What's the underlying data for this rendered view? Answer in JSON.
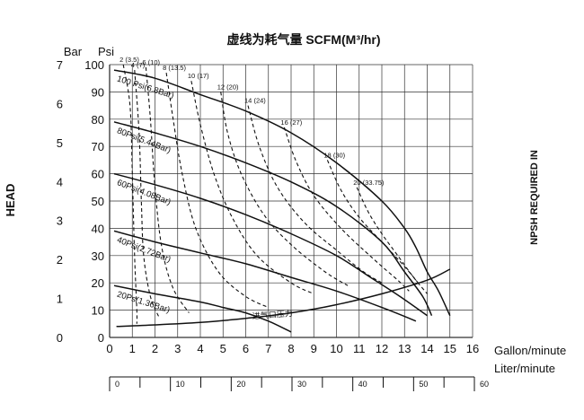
{
  "chart_data": {
    "type": "line",
    "title": "虚线为耗气量 SCFM(M³/hr)",
    "xlabel": "Gallon/minute",
    "x2label": "Liter/minute",
    "ylabel_left": "HEAD",
    "ylabel_bar_unit": "Bar",
    "ylabel_psi_unit": "Psi",
    "ylabel_right": "NPSH REQUIRED IN",
    "xlim": [
      0,
      16
    ],
    "ylim_psi": [
      0,
      100
    ],
    "ylim_bar": [
      0,
      7
    ],
    "x_ticks": [
      "0",
      "1",
      "2",
      "3",
      "4",
      "5",
      "6",
      "7",
      "8",
      "9",
      "10",
      "11",
      "12",
      "13",
      "14",
      "15",
      "16"
    ],
    "psi_ticks": [
      "0",
      "10",
      "20",
      "30",
      "40",
      "50",
      "60",
      "70",
      "80",
      "90",
      "100"
    ],
    "bar_ticks": [
      "0",
      "1",
      "2",
      "3",
      "4",
      "5",
      "6",
      "7"
    ],
    "liter_ticks": [
      "0",
      "10",
      "20",
      "30",
      "40",
      "50",
      "60"
    ],
    "grid": true,
    "pressure_curves": [
      {
        "name": "100 Psi(6.8Bar)",
        "points": [
          [
            0.2,
            98
          ],
          [
            2,
            95
          ],
          [
            4,
            89
          ],
          [
            6,
            83
          ],
          [
            8,
            75
          ],
          [
            10,
            64
          ],
          [
            12,
            50
          ],
          [
            13,
            40
          ],
          [
            13.5,
            33
          ],
          [
            14,
            24
          ],
          [
            14.5,
            17
          ],
          [
            15,
            8
          ]
        ]
      },
      {
        "name": "80Psi(5.44Bar)",
        "points": [
          [
            0.2,
            79
          ],
          [
            2,
            75
          ],
          [
            4,
            70
          ],
          [
            6,
            64
          ],
          [
            8,
            57
          ],
          [
            10,
            48
          ],
          [
            12,
            35
          ],
          [
            13,
            24
          ],
          [
            13.8,
            15
          ],
          [
            14.2,
            8
          ]
        ]
      },
      {
        "name": "60Psi(4.08Bar)",
        "points": [
          [
            0.2,
            60
          ],
          [
            2,
            56
          ],
          [
            4,
            51
          ],
          [
            6,
            45
          ],
          [
            8,
            38
          ],
          [
            10,
            30
          ],
          [
            11.5,
            22
          ],
          [
            12.8,
            15
          ],
          [
            14,
            8
          ]
        ]
      },
      {
        "name": "40Psi(2.72Bar)",
        "points": [
          [
            0.2,
            39
          ],
          [
            2,
            35
          ],
          [
            4,
            31
          ],
          [
            6,
            27
          ],
          [
            8,
            22
          ],
          [
            10,
            17
          ],
          [
            12,
            11
          ],
          [
            13.5,
            6
          ]
        ]
      },
      {
        "name": "20Ps(1.36Bar)",
        "points": [
          [
            0.2,
            19
          ],
          [
            2,
            16
          ],
          [
            4,
            13
          ],
          [
            5,
            11
          ],
          [
            6,
            9
          ],
          [
            7,
            6
          ],
          [
            8,
            2
          ]
        ]
      }
    ],
    "air_consumption_curves": [
      {
        "name": "2 (3.5)",
        "points": [
          [
            0.6,
            100
          ],
          [
            0.9,
            85
          ],
          [
            1.0,
            60
          ],
          [
            1.1,
            30
          ],
          [
            1.2,
            10
          ],
          [
            1.2,
            5
          ]
        ]
      },
      {
        "name": "4 (7)",
        "points": [
          [
            1.1,
            98
          ],
          [
            1.3,
            75
          ],
          [
            1.4,
            50
          ],
          [
            1.5,
            30
          ],
          [
            1.8,
            15
          ],
          [
            2.2,
            7
          ]
        ]
      },
      {
        "name": "6 (10)",
        "points": [
          [
            1.6,
            99
          ],
          [
            1.8,
            80
          ],
          [
            2.0,
            55
          ],
          [
            2.3,
            33
          ],
          [
            2.8,
            18
          ],
          [
            3.5,
            9
          ]
        ]
      },
      {
        "name": "8 (13.5)",
        "points": [
          [
            2.5,
            97
          ],
          [
            2.8,
            80
          ],
          [
            3.2,
            60
          ],
          [
            3.8,
            40
          ],
          [
            4.8,
            24
          ],
          [
            6,
            15
          ],
          [
            7,
            11
          ]
        ]
      },
      {
        "name": "10 (17)",
        "points": [
          [
            3.6,
            94
          ],
          [
            4,
            78
          ],
          [
            4.6,
            60
          ],
          [
            5.4,
            44
          ],
          [
            6.5,
            30
          ],
          [
            8,
            20
          ],
          [
            9,
            16
          ]
        ]
      },
      {
        "name": "12 (20)",
        "points": [
          [
            4.9,
            90
          ],
          [
            5.2,
            75
          ],
          [
            5.8,
            60
          ],
          [
            6.8,
            45
          ],
          [
            8,
            34
          ],
          [
            9.5,
            24
          ],
          [
            10.5,
            19
          ]
        ]
      },
      {
        "name": "14 (24)",
        "points": [
          [
            6.1,
            85
          ],
          [
            6.6,
            70
          ],
          [
            7.4,
            55
          ],
          [
            8.6,
            42
          ],
          [
            10,
            32
          ],
          [
            11.2,
            24
          ],
          [
            12,
            20
          ]
        ]
      },
      {
        "name": "16 (27)",
        "points": [
          [
            7.7,
            77
          ],
          [
            8.2,
            65
          ],
          [
            9,
            52
          ],
          [
            10.2,
            40
          ],
          [
            11.6,
            29
          ],
          [
            12.7,
            21
          ],
          [
            13.2,
            17
          ]
        ]
      },
      {
        "name": "18 (30)",
        "points": [
          [
            9.6,
            65
          ],
          [
            10.2,
            54
          ],
          [
            11,
            44
          ],
          [
            12,
            35
          ],
          [
            13,
            26
          ],
          [
            13.6,
            20
          ]
        ]
      },
      {
        "name": "20 (33.75)",
        "points": [
          [
            10.9,
            55
          ],
          [
            11.4,
            46
          ],
          [
            12,
            38
          ],
          [
            12.7,
            30
          ],
          [
            13.4,
            22
          ],
          [
            14,
            16
          ]
        ]
      }
    ],
    "npsh_curve": {
      "name": "进气口压力",
      "points": [
        [
          0.3,
          4
        ],
        [
          2,
          4.6
        ],
        [
          4,
          5.5
        ],
        [
          6,
          7
        ],
        [
          8,
          9
        ],
        [
          10,
          12
        ],
        [
          12,
          16
        ],
        [
          14,
          21
        ],
        [
          15,
          25
        ]
      ]
    }
  }
}
